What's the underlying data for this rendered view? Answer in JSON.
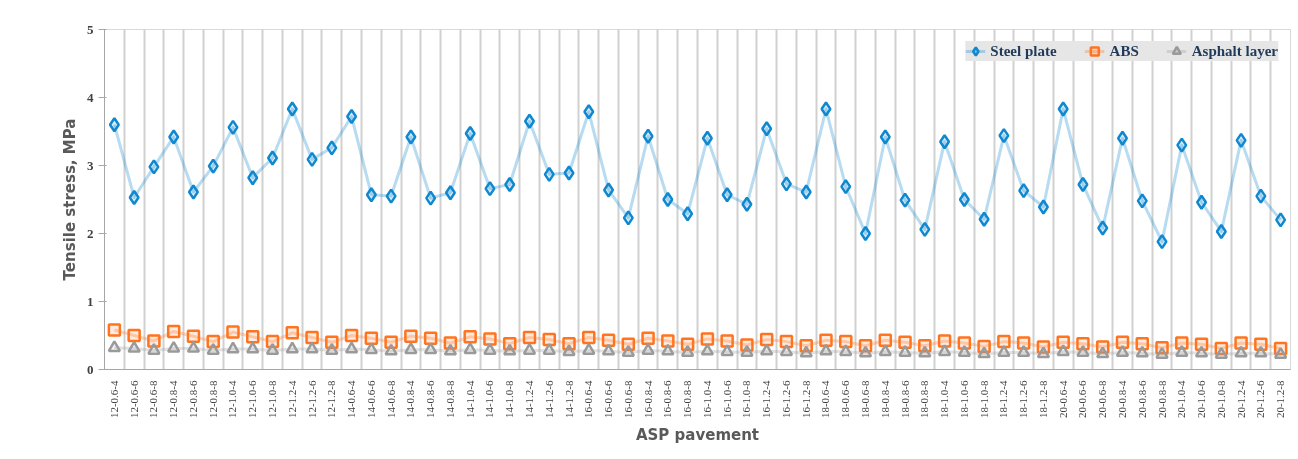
{
  "chart_data": {
    "type": "line",
    "xlabel": "ASP pavement",
    "ylabel": "Tensile stress, MPa",
    "categories": [
      "12-0.6-4",
      "12-0.6-6",
      "12-0.6-8",
      "12-0.8-4",
      "12-0.8-6",
      "12-0.8-8",
      "12-1.0-4",
      "12-1.0-6",
      "12-1.0-8",
      "12-1.2-4",
      "12-1.2-6",
      "12-1.2-8",
      "14-0.6-4",
      "14-0.6-6",
      "14-0.6-8",
      "14-0.8-4",
      "14-0.8-6",
      "14-0.8-8",
      "14-1.0-4",
      "14-1.0-6",
      "14-1.0-8",
      "14-1.2-4",
      "14-1.2-6",
      "14-1.2-8",
      "16-0.6-4",
      "16-0.6-6",
      "16-0.6-8",
      "16-0.8-4",
      "16-0.8-6",
      "16-0.8-8",
      "16-1.0-4",
      "16-1.0-6",
      "16-1.0-8",
      "16-1.2-4",
      "16-1.2-6",
      "16-1.2-8",
      "18-0.6-4",
      "18-0.6-6",
      "18-0.6-8",
      "18-0.8-4",
      "18-0.8-6",
      "18-0.8-8",
      "18-1.0-4",
      "18-1.0-6",
      "18-1.0-8",
      "18-1.2-4",
      "18-1.2-6",
      "18-1.2-8",
      "20-0.6-4",
      "20-0.6-6",
      "20-0.6-8",
      "20-0.8-4",
      "20-0.8-6",
      "20-0.8-8",
      "20-1.0-4",
      "20-1.0-6",
      "20-1.0-8",
      "20-1.2-4",
      "20-1.2-6",
      "20-1.2-8"
    ],
    "series": [
      {
        "name": "Steel plate",
        "color": "#0f88d0",
        "marker": "diamond",
        "values": [
          3.6,
          2.53,
          2.98,
          3.42,
          2.61,
          2.99,
          3.56,
          2.82,
          3.11,
          3.83,
          3.09,
          3.26,
          3.72,
          2.57,
          2.55,
          3.42,
          2.52,
          2.6,
          3.47,
          2.66,
          2.72,
          3.65,
          2.87,
          2.89,
          3.79,
          2.64,
          2.23,
          3.43,
          2.5,
          2.29,
          3.4,
          2.57,
          2.43,
          3.54,
          2.73,
          2.61,
          3.83,
          2.69,
          2.0,
          3.42,
          2.49,
          2.06,
          3.35,
          2.5,
          2.21,
          3.44,
          2.63,
          2.39,
          3.83,
          2.72,
          2.08,
          3.4,
          2.48,
          1.88,
          3.3,
          2.46,
          2.03,
          3.37,
          2.55,
          2.2
        ]
      },
      {
        "name": "ABS",
        "color": "#ff7420",
        "marker": "square",
        "values": [
          0.58,
          0.5,
          0.42,
          0.56,
          0.49,
          0.41,
          0.55,
          0.48,
          0.41,
          0.54,
          0.47,
          0.4,
          0.5,
          0.46,
          0.4,
          0.49,
          0.46,
          0.39,
          0.48,
          0.45,
          0.38,
          0.47,
          0.44,
          0.38,
          0.47,
          0.43,
          0.37,
          0.46,
          0.42,
          0.37,
          0.45,
          0.42,
          0.36,
          0.44,
          0.41,
          0.35,
          0.43,
          0.41,
          0.35,
          0.43,
          0.4,
          0.35,
          0.42,
          0.39,
          0.34,
          0.41,
          0.39,
          0.33,
          0.4,
          0.38,
          0.33,
          0.4,
          0.38,
          0.32,
          0.39,
          0.37,
          0.31,
          0.39,
          0.37,
          0.31
        ]
      },
      {
        "name": "Asphalt layer",
        "color": "#9a9a9a",
        "marker": "triangle",
        "values": [
          0.32,
          0.31,
          0.28,
          0.31,
          0.31,
          0.28,
          0.3,
          0.3,
          0.28,
          0.3,
          0.3,
          0.28,
          0.3,
          0.29,
          0.27,
          0.29,
          0.29,
          0.27,
          0.29,
          0.28,
          0.27,
          0.28,
          0.28,
          0.26,
          0.28,
          0.27,
          0.25,
          0.28,
          0.27,
          0.25,
          0.27,
          0.26,
          0.25,
          0.27,
          0.26,
          0.24,
          0.27,
          0.26,
          0.24,
          0.26,
          0.25,
          0.24,
          0.26,
          0.25,
          0.23,
          0.25,
          0.25,
          0.23,
          0.26,
          0.25,
          0.23,
          0.25,
          0.24,
          0.22,
          0.25,
          0.24,
          0.22,
          0.24,
          0.24,
          0.22
        ]
      }
    ],
    "ylim": [
      0,
      5
    ],
    "yticks": [
      0,
      1,
      2,
      3,
      4,
      5
    ],
    "grid": "x",
    "legend": "top right",
    "line_style": "solid"
  }
}
